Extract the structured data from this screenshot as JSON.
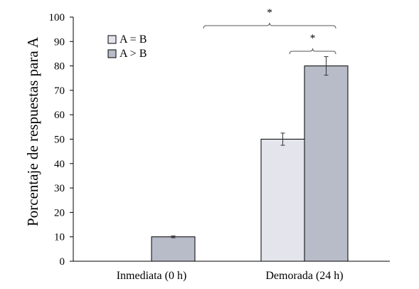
{
  "chart_data": {
    "type": "bar",
    "ylabel": "Porcentaje de respuestas para A",
    "xlabel": "",
    "ylim": [
      0,
      100
    ],
    "y_ticks": [
      0,
      10,
      20,
      30,
      40,
      50,
      60,
      70,
      80,
      90,
      100
    ],
    "categories": [
      "Inmediata (0 h)",
      "Demorada (24 h)"
    ],
    "series": [
      {
        "name": "A = B",
        "values": [
          null,
          50
        ],
        "errors": [
          null,
          2.5
        ],
        "color": "#e3e4ec"
      },
      {
        "name": "A > B",
        "values": [
          10,
          80
        ],
        "errors": [
          0.4,
          3.8
        ],
        "color": "#b8bcc9"
      }
    ],
    "legend_position": "top-left",
    "significance": [
      {
        "label": "*",
        "from": "A > B · Inmediata (0 h)",
        "to": "A > B · Demorada (24 h)"
      },
      {
        "label": "*",
        "from": "A = B · Demorada (24 h)",
        "to": "A > B · Demorada (24 h)"
      }
    ],
    "grid": false
  }
}
